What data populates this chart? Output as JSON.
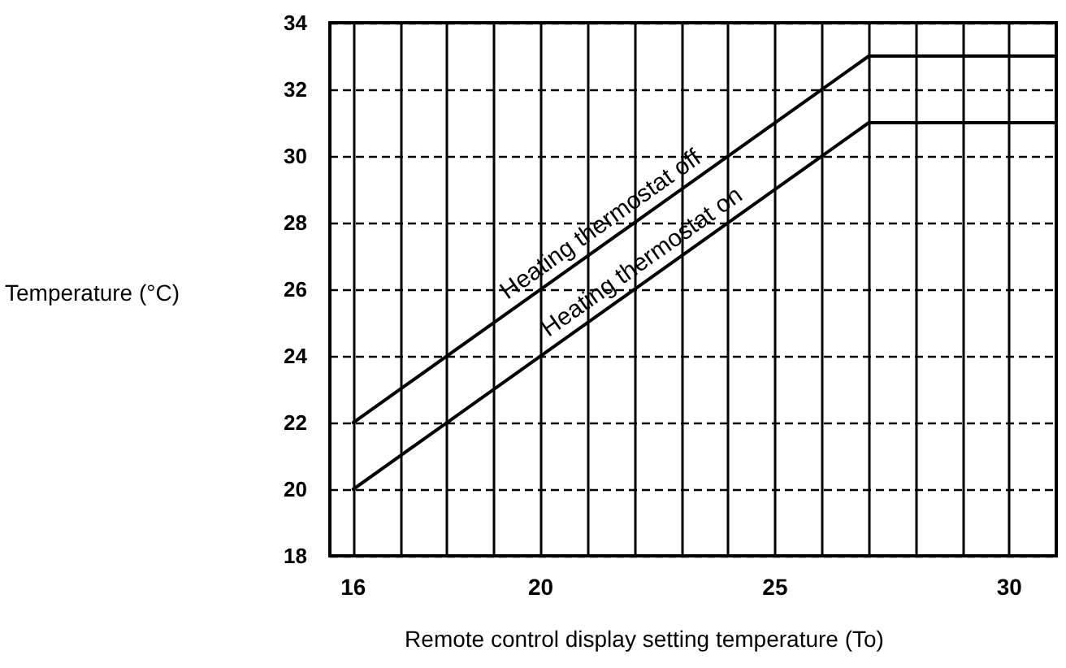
{
  "chart_data": {
    "type": "line",
    "xlabel": "Remote control display setting temperature (To)",
    "ylabel": "Temperature (°C)",
    "xlim": [
      15.5,
      31
    ],
    "xticks": [
      16,
      {
        "value": 17,
        "label": null
      },
      {
        "value": 18,
        "label": null
      },
      {
        "value": 19,
        "label": null
      },
      20,
      {
        "value": 21,
        "label": null
      },
      {
        "value": 22,
        "label": null
      },
      {
        "value": 23,
        "label": null
      },
      {
        "value": 24,
        "label": null
      },
      25,
      {
        "value": 26,
        "label": null
      },
      {
        "value": 27,
        "label": null
      },
      {
        "value": 28,
        "label": null
      },
      {
        "value": 29,
        "label": null
      },
      30
    ],
    "ylim": [
      18,
      34
    ],
    "yticks": [
      18,
      20,
      22,
      24,
      26,
      28,
      30,
      32,
      34
    ],
    "grid": true,
    "marker": "none",
    "line_style": "solid",
    "series": [
      {
        "name": "Heating thermostat off",
        "color": "#000000",
        "x": [
          16,
          27,
          31
        ],
        "values": [
          22,
          33,
          33
        ]
      },
      {
        "name": "Heating thermostat on",
        "color": "#000000",
        "x": [
          16,
          27,
          31
        ],
        "values": [
          20,
          31,
          31
        ]
      }
    ]
  }
}
